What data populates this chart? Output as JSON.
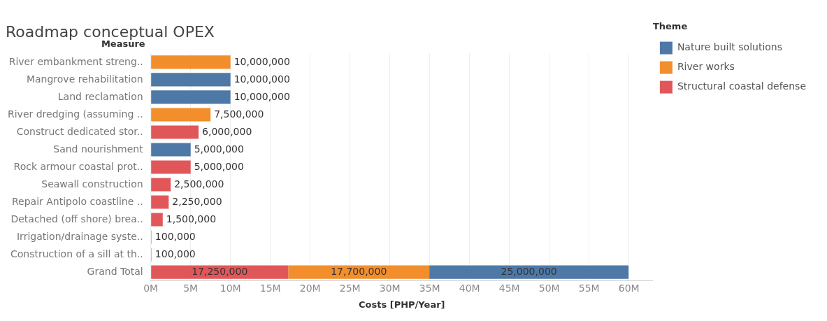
{
  "chart_data": {
    "type": "bar",
    "orientation": "horizontal",
    "stacked": true,
    "title": "Roadmap conceptual OPEX",
    "xlabel": "Costs [PHP/Year]",
    "ylabel": "Measure",
    "legend_title": "Theme",
    "legend": "top right",
    "grid": "x",
    "categories": [
      "River embankment streng..",
      "Mangrove rehabilitation",
      "Land reclamation",
      "River dredging (assuming ..",
      "Construct dedicated stor..",
      "Sand nourishment",
      "Rock armour coastal prot..",
      "Seawall construction",
      "Repair Antipolo coastline ..",
      "Detached (off shore) brea..",
      "Irrigation/drainage syste..",
      "Construction of a sill at th..",
      "Grand Total"
    ],
    "series": [
      {
        "name": "Structural coastal defense",
        "color": "#e15759",
        "values": [
          null,
          null,
          null,
          null,
          6000000,
          null,
          5000000,
          2500000,
          2250000,
          1500000,
          null,
          null,
          17250000
        ],
        "value_labels": [
          null,
          null,
          null,
          null,
          "6,000,000",
          null,
          "5,000,000",
          "2,500,000",
          "2,250,000",
          "1,500,000",
          null,
          null,
          "17,250,000"
        ]
      },
      {
        "name": "River works",
        "color": "#f28e2b",
        "values": [
          10000000,
          null,
          null,
          7500000,
          null,
          null,
          null,
          null,
          null,
          null,
          100000,
          100000,
          17700000
        ],
        "value_labels": [
          "10,000,000",
          null,
          null,
          "7,500,000",
          null,
          null,
          null,
          null,
          null,
          null,
          "100,000",
          "100,000",
          "17,700,000"
        ]
      },
      {
        "name": "Nature built solutions",
        "color": "#4e79a7",
        "values": [
          null,
          10000000,
          10000000,
          null,
          null,
          5000000,
          null,
          null,
          null,
          null,
          null,
          null,
          25000000
        ],
        "value_labels": [
          null,
          "10,000,000",
          "10,000,000",
          null,
          null,
          "5,000,000",
          null,
          null,
          null,
          null,
          null,
          null,
          "25,000,000"
        ]
      }
    ],
    "xlim": [
      0,
      63000000
    ],
    "xticks": [
      {
        "value": 0,
        "label": "0M"
      },
      {
        "value": 5000000,
        "label": "5M"
      },
      {
        "value": 10000000,
        "label": "10M"
      },
      {
        "value": 15000000,
        "label": "15M"
      },
      {
        "value": 20000000,
        "label": "20M"
      },
      {
        "value": 25000000,
        "label": "25M"
      },
      {
        "value": 30000000,
        "label": "30M"
      },
      {
        "value": 35000000,
        "label": "35M"
      },
      {
        "value": 40000000,
        "label": "40M"
      },
      {
        "value": 45000000,
        "label": "45M"
      },
      {
        "value": 50000000,
        "label": "50M"
      },
      {
        "value": 55000000,
        "label": "55M"
      },
      {
        "value": 60000000,
        "label": "60M"
      }
    ]
  }
}
